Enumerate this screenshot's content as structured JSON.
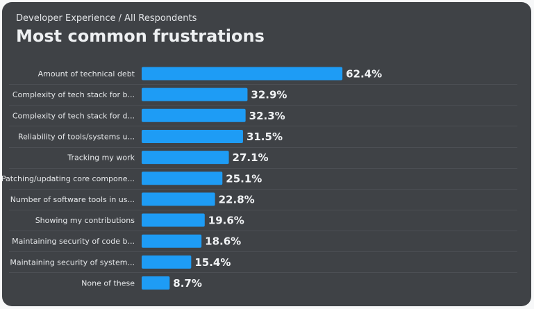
{
  "header": {
    "breadcrumb": "Developer Experience / All Respondents",
    "title": "Most common frustrations"
  },
  "colors": {
    "card_background": "#3f4246",
    "bar": "#1e9cf5",
    "row_divider": "#4c4f54",
    "label_text": "#e6e8ea",
    "value_text": "#f1f3f5"
  },
  "chart_data": {
    "type": "bar",
    "orientation": "horizontal",
    "title": "Most common frustrations",
    "subtitle": "Developer Experience / All Respondents",
    "categories": [
      "Amount of technical debt",
      "Complexity of tech stack for b...",
      "Complexity of tech stack for d...",
      "Reliability of tools/systems u...",
      "Tracking my work",
      "Patching/updating core compone...",
      "Number of software tools in us...",
      "Showing my contributions",
      "Maintaining security of code b...",
      "Maintaining security of system...",
      "None of these"
    ],
    "values": [
      62.4,
      32.9,
      32.3,
      31.5,
      27.1,
      25.1,
      22.8,
      19.6,
      18.6,
      15.4,
      8.7
    ],
    "value_labels": [
      "62.4%",
      "32.9%",
      "32.3%",
      "31.5%",
      "27.1%",
      "25.1%",
      "22.8%",
      "19.6%",
      "18.6%",
      "15.4%",
      "8.7%"
    ],
    "unit": "%",
    "xlim": [
      0,
      100
    ],
    "grid": false,
    "legend": "none"
  }
}
